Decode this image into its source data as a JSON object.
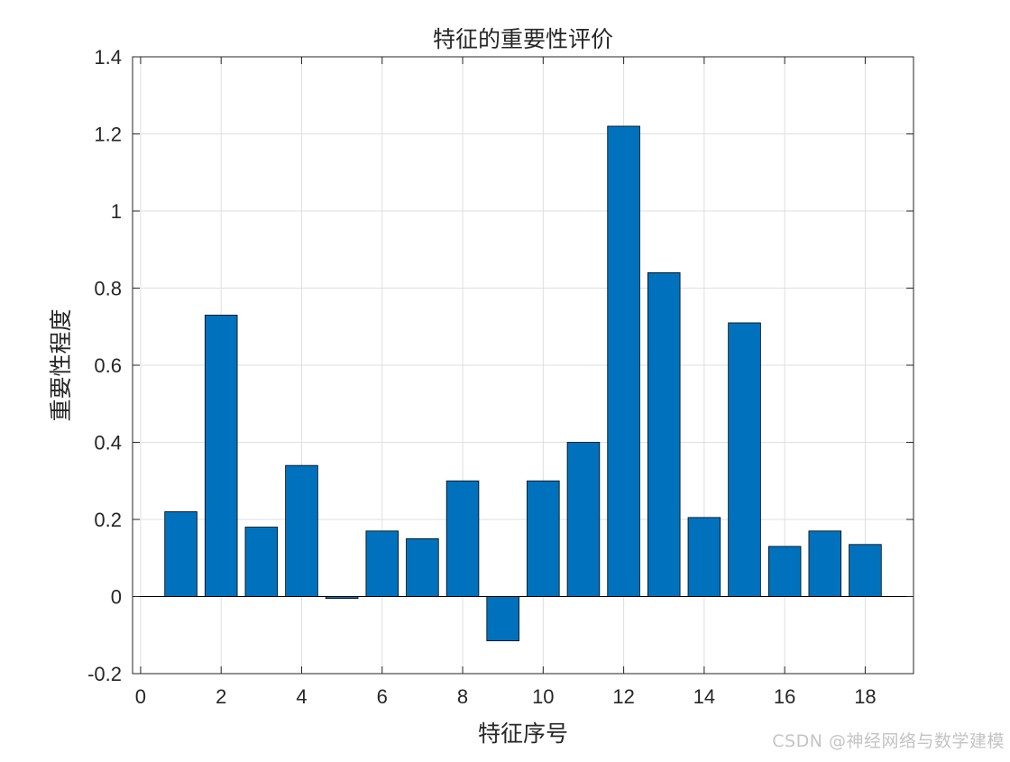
{
  "chart_data": {
    "type": "bar",
    "title": "特征的重要性评价",
    "xlabel": "特征序号",
    "ylabel": "重要性程度",
    "x": [
      1,
      2,
      3,
      4,
      5,
      6,
      7,
      8,
      9,
      10,
      11,
      12,
      13,
      14,
      15,
      16,
      17,
      18
    ],
    "values": [
      0.22,
      0.73,
      0.18,
      0.34,
      -0.005,
      0.17,
      0.15,
      0.3,
      -0.115,
      0.3,
      0.4,
      1.22,
      0.84,
      0.205,
      0.71,
      0.13,
      0.17,
      0.135
    ],
    "xlim": [
      -0.2,
      19.2
    ],
    "ylim": [
      -0.2,
      1.4
    ],
    "xticks": [
      0,
      2,
      4,
      6,
      8,
      10,
      12,
      14,
      16,
      18
    ],
    "yticks": [
      -0.2,
      0,
      0.2,
      0.4,
      0.6,
      0.8,
      1,
      1.2,
      1.4
    ],
    "ytick_labels": [
      "-0.2",
      "0",
      "0.2",
      "0.4",
      "0.6",
      "0.8",
      "1",
      "1.2",
      "1.4"
    ],
    "grid": true,
    "bar_color": "#0072BD"
  },
  "watermark": "CSDN @神经网络与数学建模"
}
